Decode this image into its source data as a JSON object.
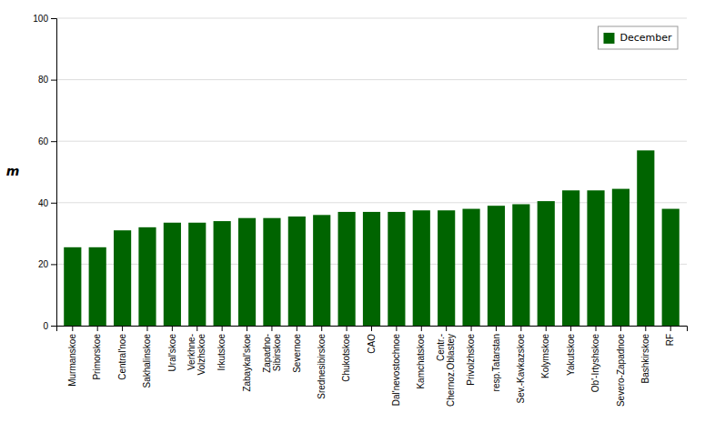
{
  "chart_data": {
    "type": "bar",
    "categories": [
      "Murmanskoe",
      "Primorskoe",
      "Central'noe",
      "Sakhalinskoe",
      "Ural'skoe",
      "Verkhne-\nVolzhskoe",
      "Irkutskoe",
      "Zabaykal'skoe",
      "Zapadno-\nSibirskoe",
      "Severnoe",
      "Srednesibirskoe",
      "Chukotskoe",
      "CAO",
      "Dal'nevostochnoe",
      "Kamchatskoe",
      "Centr.-\nChernoz.Oblastey",
      "Privolzhskoe",
      "resp.Tatarstan",
      "Sev.-Kavkazskoe",
      "Kolymskoe",
      "Yakutskoe",
      "Ob'-Irtyshskoe",
      "Severo-Zapadnoe",
      "Bashkirskoe",
      "RF"
    ],
    "series": [
      {
        "name": "December",
        "color": "#006400",
        "values": [
          25.5,
          25.5,
          31.0,
          32.0,
          33.5,
          33.5,
          34.0,
          35.0,
          35.0,
          35.5,
          36.0,
          37.0,
          37.0,
          37.0,
          37.5,
          37.5,
          38.0,
          39.0,
          39.5,
          40.5,
          44.0,
          44.0,
          44.5,
          57.0,
          38.0
        ]
      }
    ],
    "ylabel": "m",
    "ylim": [
      0,
      100
    ],
    "yticks": [
      0,
      20,
      40,
      60,
      80,
      100
    ],
    "grid": true,
    "legend": "upper right"
  }
}
